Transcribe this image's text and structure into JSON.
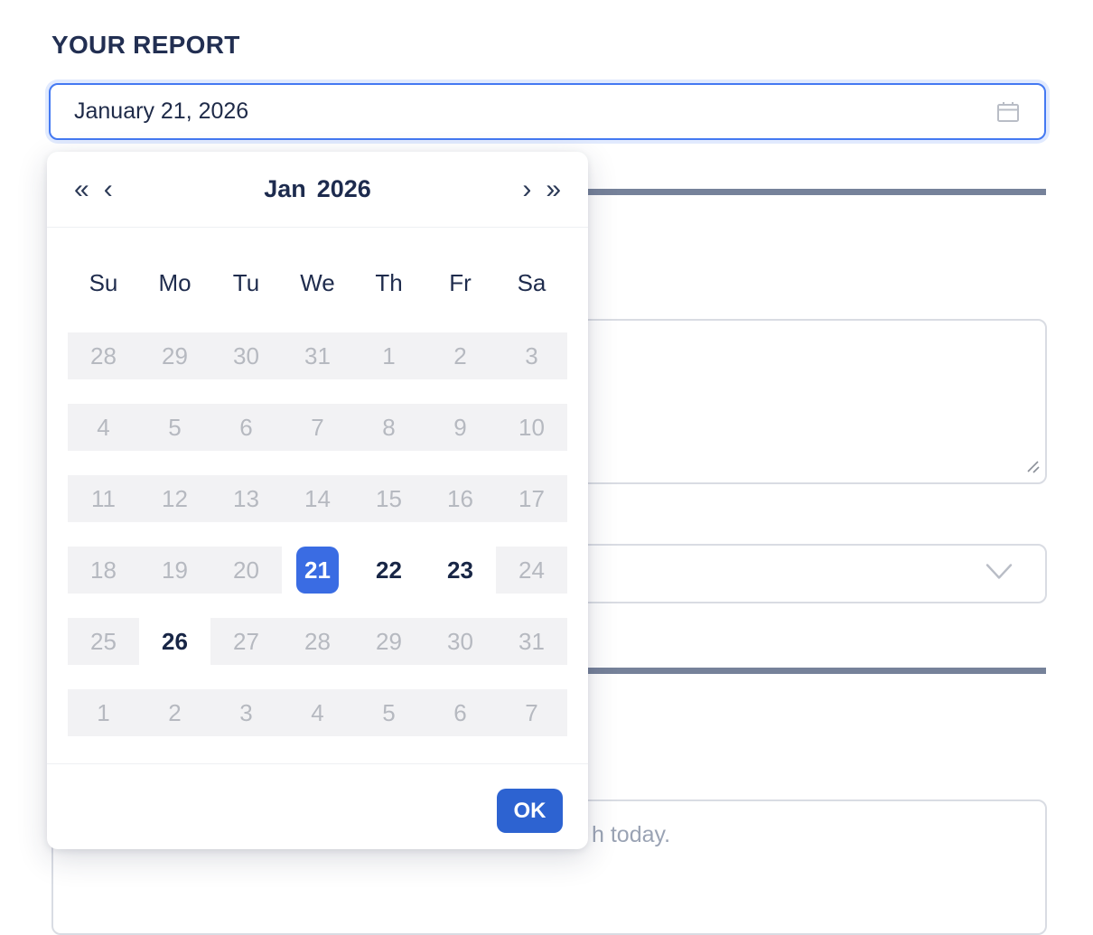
{
  "page": {
    "title": "YOUR REPORT"
  },
  "date_field": {
    "value": "January 21, 2026"
  },
  "datepicker": {
    "nav": {
      "prev_year": "«",
      "prev_month": "‹",
      "next_month": "›",
      "next_year": "»"
    },
    "header": {
      "month": "Jan",
      "year": "2026"
    },
    "weekdays": [
      "Su",
      "Mo",
      "Tu",
      "We",
      "Th",
      "Fr",
      "Sa"
    ],
    "weeks": [
      [
        {
          "day": "28",
          "state": "disabled"
        },
        {
          "day": "29",
          "state": "disabled"
        },
        {
          "day": "30",
          "state": "disabled"
        },
        {
          "day": "31",
          "state": "disabled"
        },
        {
          "day": "1",
          "state": "disabled"
        },
        {
          "day": "2",
          "state": "disabled"
        },
        {
          "day": "3",
          "state": "disabled"
        }
      ],
      [
        {
          "day": "4",
          "state": "disabled"
        },
        {
          "day": "5",
          "state": "disabled"
        },
        {
          "day": "6",
          "state": "disabled"
        },
        {
          "day": "7",
          "state": "disabled"
        },
        {
          "day": "8",
          "state": "disabled"
        },
        {
          "day": "9",
          "state": "disabled"
        },
        {
          "day": "10",
          "state": "disabled"
        }
      ],
      [
        {
          "day": "11",
          "state": "disabled"
        },
        {
          "day": "12",
          "state": "disabled"
        },
        {
          "day": "13",
          "state": "disabled"
        },
        {
          "day": "14",
          "state": "disabled"
        },
        {
          "day": "15",
          "state": "disabled"
        },
        {
          "day": "16",
          "state": "disabled"
        },
        {
          "day": "17",
          "state": "disabled"
        }
      ],
      [
        {
          "day": "18",
          "state": "disabled"
        },
        {
          "day": "19",
          "state": "disabled"
        },
        {
          "day": "20",
          "state": "disabled"
        },
        {
          "day": "21",
          "state": "selected"
        },
        {
          "day": "22",
          "state": "enabled"
        },
        {
          "day": "23",
          "state": "enabled"
        },
        {
          "day": "24",
          "state": "disabled"
        }
      ],
      [
        {
          "day": "25",
          "state": "disabled"
        },
        {
          "day": "26",
          "state": "enabled"
        },
        {
          "day": "27",
          "state": "disabled"
        },
        {
          "day": "28",
          "state": "disabled"
        },
        {
          "day": "29",
          "state": "disabled"
        },
        {
          "day": "30",
          "state": "disabled"
        },
        {
          "day": "31",
          "state": "disabled"
        }
      ],
      [
        {
          "day": "1",
          "state": "disabled"
        },
        {
          "day": "2",
          "state": "disabled"
        },
        {
          "day": "3",
          "state": "disabled"
        },
        {
          "day": "4",
          "state": "disabled"
        },
        {
          "day": "5",
          "state": "disabled"
        },
        {
          "day": "6",
          "state": "disabled"
        },
        {
          "day": "7",
          "state": "disabled"
        }
      ]
    ],
    "ok_label": "OK"
  },
  "background_form": {
    "textarea2_placeholder_visible_fragment": "h today."
  },
  "icons": {
    "input_suffix": "calendar-icon",
    "select_suffix": "chevron-down-icon",
    "textarea_corner": "resize-handle-icon"
  },
  "colors": {
    "heading_navy": "#222f52",
    "input_border_blue": "#4479f2",
    "selected_day_blue": "#3a6ce3",
    "ok_button_blue": "#2d63d1",
    "divider_slate": "#76829a",
    "disabled_bg": "#f2f2f4",
    "disabled_text": "#b6b9c0",
    "border_gray": "#d9dce3",
    "placeholder_gray": "#9aa3b4"
  }
}
